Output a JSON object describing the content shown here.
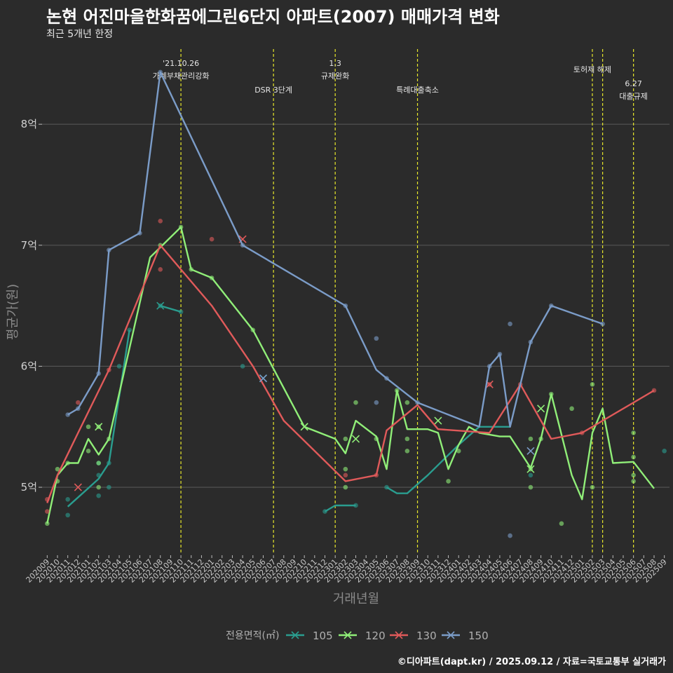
{
  "header": {
    "title": "논현 어진마을한화꿈에그린6단지 아파트(2007) 매매가격 변화",
    "subtitle": "최근 5개년 한정",
    "credit": "©디아파트(dapt.kr) / 2025.09.12 / 자료=국토교통부 실거래가"
  },
  "chart_data": {
    "type": "line",
    "xlabel": "거래년월",
    "ylabel": "평균가(원)",
    "x_categories": [
      "202009",
      "202010",
      "202011",
      "202012",
      "202101",
      "202102",
      "202103",
      "202104",
      "202105",
      "202106",
      "202107",
      "202108",
      "202109",
      "202110",
      "202111",
      "202112",
      "202201",
      "202202",
      "202203",
      "202204",
      "202205",
      "202206",
      "202207",
      "202208",
      "202209",
      "202210",
      "202211",
      "202212",
      "202301",
      "202302",
      "202303",
      "202304",
      "202305",
      "202306",
      "202307",
      "202308",
      "202309",
      "202310",
      "202311",
      "202312",
      "202401",
      "202402",
      "202403",
      "202404",
      "202405",
      "202406",
      "202407",
      "202408",
      "202409",
      "202410",
      "202411",
      "202412",
      "202501",
      "202502",
      "202503",
      "202504",
      "202505",
      "202506",
      "202507",
      "202508",
      "202509"
    ],
    "y_unit": "억",
    "ylim": [
      4.45,
      8.65
    ],
    "y_ticks": [
      {
        "value": 5,
        "label": "5억"
      },
      {
        "value": 6,
        "label": "6억"
      },
      {
        "value": 7,
        "label": "7억"
      },
      {
        "value": 8,
        "label": "8억"
      }
    ],
    "grid": true,
    "legend": {
      "title": "전용면적(㎡)",
      "placement": "bottom"
    },
    "colors": {
      "105": "#2a9d8f",
      "120": "#90ee78",
      "130": "#e05a5a",
      "150": "#7b9cc8",
      "vline": "#e8e82a"
    },
    "events": [
      {
        "month": "202110",
        "label_lines": [
          "'21.10.26",
          "가계부채관리강화"
        ],
        "level": 1
      },
      {
        "month": "202207",
        "label_lines": [
          "DSR 3단계"
        ],
        "level": 3
      },
      {
        "month": "202301",
        "label_lines": [
          "1.3",
          "규제완화"
        ],
        "level": 1
      },
      {
        "month": "202309",
        "label_lines": [
          "특례대출축소"
        ],
        "level": 3
      },
      {
        "month": "202502",
        "label_lines": [
          "토허제 해제"
        ],
        "level": 2
      },
      {
        "month": "202503",
        "label_lines": [],
        "level": 2
      },
      {
        "month": "202506",
        "label_lines": [
          "6.27",
          "대출규제"
        ],
        "level": 4
      }
    ],
    "series": [
      {
        "name": "105",
        "line": [
          [
            "202011",
            4.84
          ],
          [
            "202102",
            5.07
          ],
          [
            "202103",
            5.2
          ],
          [
            "202105",
            6.3
          ]
        ],
        "line2": [
          [
            "202108",
            6.5
          ],
          [
            "202110",
            6.45
          ]
        ],
        "line3": [
          [
            "202212",
            4.8
          ],
          [
            "202301",
            4.85
          ],
          [
            "202303",
            4.85
          ]
        ],
        "line4": [
          [
            "202306",
            5.0
          ],
          [
            "202307",
            4.95
          ],
          [
            "202308",
            4.95
          ],
          [
            "202310",
            5.1
          ],
          [
            "202401",
            5.35
          ],
          [
            "202403",
            5.5
          ],
          [
            "202406",
            5.5
          ]
        ],
        "line5": [
          [
            "202509",
            5.3
          ]
        ],
        "points": [
          [
            "202011",
            4.77
          ],
          [
            "202011",
            4.9
          ],
          [
            "202102",
            4.93
          ],
          [
            "202102",
            5.1
          ],
          [
            "202102",
            5.2
          ],
          [
            "202103",
            5.0
          ],
          [
            "202103",
            5.2
          ],
          [
            "202104",
            6.0
          ],
          [
            "202105",
            6.3
          ],
          [
            "202108",
            6.5
          ],
          [
            "202110",
            6.45
          ],
          [
            "202204",
            6.0
          ],
          [
            "202212",
            4.8
          ],
          [
            "202303",
            4.85
          ],
          [
            "202306",
            5.0
          ],
          [
            "202408",
            5.1
          ],
          [
            "202509",
            5.3
          ]
        ],
        "crosses": [
          [
            "202108",
            6.5
          ],
          [
            "202206",
            5.9
          ]
        ]
      },
      {
        "name": "120",
        "line": [
          [
            "202009",
            4.7
          ],
          [
            "202010",
            5.1
          ],
          [
            "202011",
            5.2
          ],
          [
            "202012",
            5.2
          ],
          [
            "202101",
            5.4
          ],
          [
            "202102",
            5.27
          ],
          [
            "202103",
            5.4
          ],
          [
            "202107",
            6.9
          ],
          [
            "202110",
            7.15
          ],
          [
            "202111",
            6.8
          ],
          [
            "202201",
            6.73
          ],
          [
            "202205",
            6.3
          ],
          [
            "202210",
            5.5
          ],
          [
            "202301",
            5.4
          ],
          [
            "202302",
            5.28
          ],
          [
            "202303",
            5.55
          ],
          [
            "202305",
            5.42
          ],
          [
            "202306",
            5.15
          ],
          [
            "202307",
            5.8
          ],
          [
            "202308",
            5.48
          ],
          [
            "202310",
            5.48
          ],
          [
            "202311",
            5.45
          ],
          [
            "202312",
            5.15
          ],
          [
            "202401",
            5.35
          ],
          [
            "202402",
            5.5
          ],
          [
            "202403",
            5.45
          ],
          [
            "202405",
            5.42
          ],
          [
            "202406",
            5.42
          ],
          [
            "202408",
            5.16
          ],
          [
            "202409",
            5.4
          ],
          [
            "202410",
            5.77
          ],
          [
            "202412",
            5.1
          ],
          [
            "202501",
            4.9
          ],
          [
            "202502",
            5.45
          ],
          [
            "202503",
            5.65
          ],
          [
            "202504",
            5.2
          ],
          [
            "202506",
            5.21
          ],
          [
            "202508",
            4.99
          ]
        ],
        "points": [
          [
            "202009",
            4.7
          ],
          [
            "202010",
            5.15
          ],
          [
            "202010",
            5.05
          ],
          [
            "202011",
            5.2
          ],
          [
            "202101",
            5.5
          ],
          [
            "202101",
            5.3
          ],
          [
            "202102",
            5.5
          ],
          [
            "202102",
            5.2
          ],
          [
            "202102",
            5.0
          ],
          [
            "202103",
            5.4
          ],
          [
            "202108",
            7.0
          ],
          [
            "202110",
            7.15
          ],
          [
            "202111",
            6.8
          ],
          [
            "202201",
            6.73
          ],
          [
            "202205",
            6.3
          ],
          [
            "202302",
            5.15
          ],
          [
            "202302",
            5.0
          ],
          [
            "202302",
            5.4
          ],
          [
            "202303",
            5.7
          ],
          [
            "202305",
            5.4
          ],
          [
            "202307",
            5.8
          ],
          [
            "202308",
            5.7
          ],
          [
            "202308",
            5.4
          ],
          [
            "202308",
            5.3
          ],
          [
            "202312",
            5.05
          ],
          [
            "202401",
            5.3
          ],
          [
            "202408",
            5.4
          ],
          [
            "202408",
            5.0
          ],
          [
            "202408",
            5.15
          ],
          [
            "202409",
            5.4
          ],
          [
            "202410",
            5.77
          ],
          [
            "202411",
            4.7
          ],
          [
            "202412",
            5.65
          ],
          [
            "202502",
            5.85
          ],
          [
            "202502",
            5.0
          ],
          [
            "202506",
            5.45
          ],
          [
            "202506",
            5.25
          ],
          [
            "202506",
            5.1
          ],
          [
            "202506",
            5.05
          ]
        ],
        "crosses": [
          [
            "202102",
            5.5
          ],
          [
            "202210",
            5.5
          ],
          [
            "202303",
            5.4
          ],
          [
            "202311",
            5.55
          ],
          [
            "202408",
            5.15
          ],
          [
            "202409",
            5.65
          ]
        ]
      },
      {
        "name": "130",
        "line": [
          [
            "202009",
            4.87
          ],
          [
            "202010",
            5.1
          ],
          [
            "202012",
            5.45
          ],
          [
            "202103",
            5.97
          ],
          [
            "202108",
            7.0
          ],
          [
            "202201",
            6.5
          ],
          [
            "202205",
            6.0
          ],
          [
            "202208",
            5.55
          ],
          [
            "202302",
            5.05
          ],
          [
            "202305",
            5.1
          ],
          [
            "202306",
            5.47
          ],
          [
            "202309",
            5.68
          ],
          [
            "202311",
            5.48
          ],
          [
            "202404",
            5.45
          ],
          [
            "202407",
            5.85
          ],
          [
            "202410",
            5.4
          ],
          [
            "202501",
            5.45
          ],
          [
            "202508",
            5.8
          ]
        ],
        "points": [
          [
            "202009",
            4.9
          ],
          [
            "202009",
            4.8
          ],
          [
            "202012",
            5.7
          ],
          [
            "202103",
            5.97
          ],
          [
            "202108",
            7.2
          ],
          [
            "202108",
            6.8
          ],
          [
            "202201",
            7.05
          ],
          [
            "202302",
            5.1
          ],
          [
            "202305",
            5.1
          ],
          [
            "202404",
            5.85
          ],
          [
            "202407",
            5.85
          ],
          [
            "202501",
            5.45
          ],
          [
            "202508",
            5.8
          ]
        ],
        "crosses": [
          [
            "202012",
            5.0
          ],
          [
            "202204",
            7.05
          ],
          [
            "202404",
            5.85
          ]
        ]
      },
      {
        "name": "150",
        "line": [
          [
            "202011",
            5.6
          ],
          [
            "202012",
            5.65
          ],
          [
            "202102",
            5.94
          ],
          [
            "202103",
            6.96
          ],
          [
            "202106",
            7.1
          ],
          [
            "202108",
            8.43
          ],
          [
            "202204",
            7.0
          ],
          [
            "202302",
            6.5
          ],
          [
            "202305",
            5.97
          ],
          [
            "202306",
            5.9
          ],
          [
            "202309",
            5.7
          ],
          [
            "202312",
            5.6
          ],
          [
            "202403",
            5.5
          ],
          [
            "202404",
            6.0
          ],
          [
            "202405",
            6.1
          ],
          [
            "202406",
            5.5
          ],
          [
            "202408",
            6.2
          ],
          [
            "202410",
            6.5
          ],
          [
            "202503",
            6.35
          ]
        ],
        "points": [
          [
            "202011",
            5.6
          ],
          [
            "202012",
            5.65
          ],
          [
            "202102",
            5.94
          ],
          [
            "202103",
            6.96
          ],
          [
            "202106",
            7.1
          ],
          [
            "202108",
            8.43
          ],
          [
            "202204",
            7.0
          ],
          [
            "202302",
            6.5
          ],
          [
            "202305",
            6.23
          ],
          [
            "202305",
            5.7
          ],
          [
            "202306",
            5.9
          ],
          [
            "202309",
            5.7
          ],
          [
            "202404",
            6.0
          ],
          [
            "202405",
            6.1
          ],
          [
            "202406",
            6.35
          ],
          [
            "202406",
            4.6
          ],
          [
            "202408",
            6.2
          ],
          [
            "202410",
            6.5
          ],
          [
            "202503",
            6.35
          ]
        ],
        "crosses": [
          [
            "202206",
            5.9
          ],
          [
            "202408",
            5.3
          ]
        ]
      }
    ]
  }
}
